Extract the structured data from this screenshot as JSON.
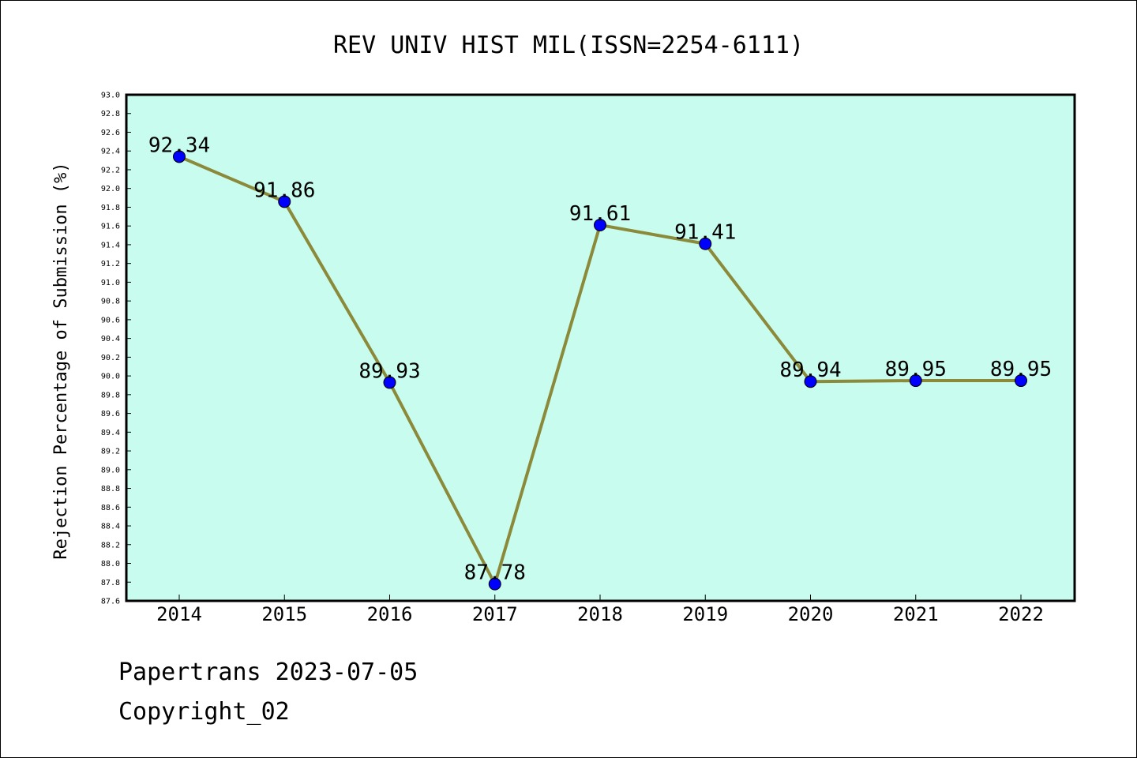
{
  "chart_data": {
    "type": "line",
    "title": "REV UNIV HIST MIL(ISSN=2254-6111)",
    "xlabel": "",
    "ylabel": "Rejection Percentage of Submission (%)",
    "categories": [
      "2014",
      "2015",
      "2016",
      "2017",
      "2018",
      "2019",
      "2020",
      "2021",
      "2022"
    ],
    "series": [
      {
        "values": [
          92.34,
          91.86,
          89.93,
          87.78,
          91.61,
          91.41,
          89.94,
          89.95,
          89.95
        ],
        "labels": [
          "92.34",
          "91.86",
          "89.93",
          "87.78",
          "91.61",
          "91.41",
          "89.94",
          "89.95",
          "89.95"
        ]
      }
    ],
    "ylim": [
      87.6,
      93.0
    ],
    "yticks": [
      "87.6",
      "87.8",
      "88.0",
      "88.2",
      "88.4",
      "88.6",
      "88.8",
      "89.0",
      "89.2",
      "89.4",
      "89.6",
      "89.8",
      "90.0",
      "90.2",
      "90.4",
      "90.6",
      "90.8",
      "91.0",
      "91.2",
      "91.4",
      "91.6",
      "91.8",
      "92.0",
      "92.2",
      "92.4",
      "92.6",
      "92.8",
      "93.0"
    ],
    "grid": false,
    "colors": {
      "plot_background": "#c8fcee",
      "line": "#8b8a3a",
      "marker": "#0000ff"
    }
  },
  "footer": {
    "source": "Papertrans 2023-07-05",
    "copyright": "Copyright_02"
  }
}
